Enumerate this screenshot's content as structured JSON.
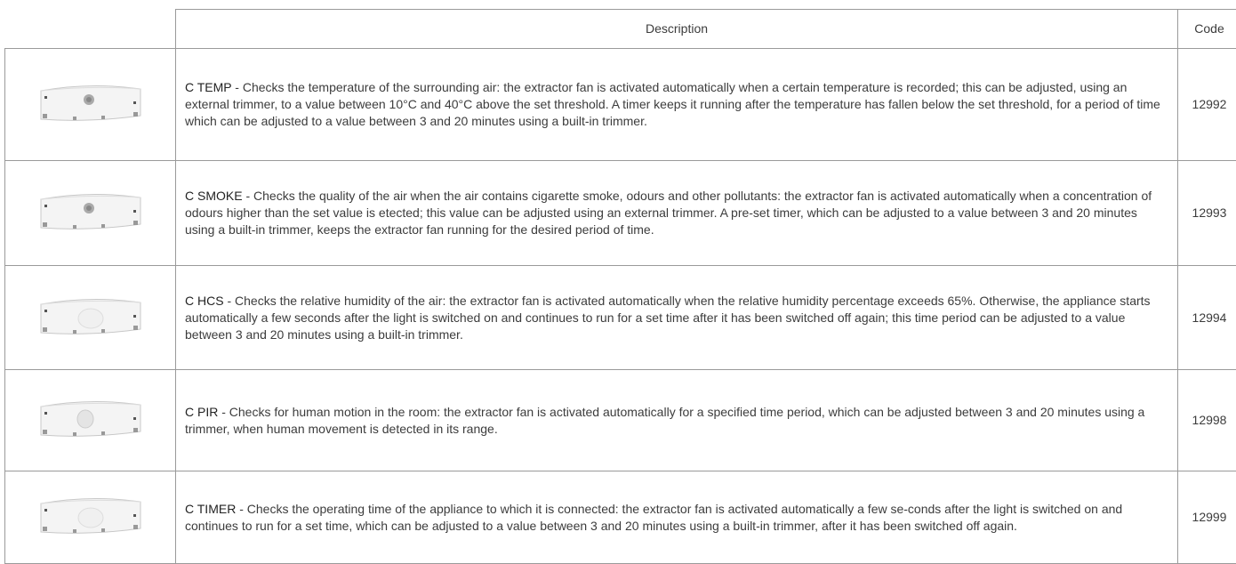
{
  "table": {
    "header": [
      "Description",
      "Code"
    ],
    "rows": [
      {
        "name": "C TEMP",
        "text": "- Checks the temperature of the surrounding air: the extractor fan is activated automatically when a certain temperature is recorded; this can be adjusted, using an external trimmer, to a value between 10°C and 40°C above the set threshold. A timer keeps it running after the temperature has fallen below the set threshold, for a period of time which can be adjusted to a value between 3 and 20 minutes using a built-in trimmer.",
        "code": 12992
      },
      {
        "name": "C SMOKE",
        "text": "- Checks the quality of the air when the air contains cigarette smoke, odours and other pollutants: the extractor fan is activated automatically when a concentration of odours higher than the set value is etected; this value can be adjusted using an external trimmer. A pre-set timer, which can be adjusted to a value between 3 and 20 minutes using a built-in trimmer, keeps the extractor fan running for the desired period of time.",
        "code": 12993
      },
      {
        "name": "C HCS",
        "text": "- Checks the relative humidity of the air: the extractor fan is activated automatically when the relative humidity percentage exceeds 65%. Otherwise, the appliance starts automatically a few seconds after the light is switched on and continues to run for a set time after it has been switched off again; this time period can be adjusted to a value between 3 and 20 minutes using a built-in trimmer.",
        "code": 12994
      },
      {
        "name": "C PIR",
        "text": "- Checks for human motion in the room: the extractor fan is activated automatically for a specified time period, which can be adjusted between 3 and 20 minutes using a trimmer, when human movement is detected in its range.",
        "code": 12998
      },
      {
        "name": "C TIMER",
        "text": "- Checks the operating time of the appliance to which it is connected: the extractor fan is activated automatically a few se-conds after the light is switched on and continues to run for a set time, which can be adjusted to a value between 3 and 20 minutes using a built-in trimmer, after it has been switched off again.",
        "code": 12999
      }
    ]
  }
}
